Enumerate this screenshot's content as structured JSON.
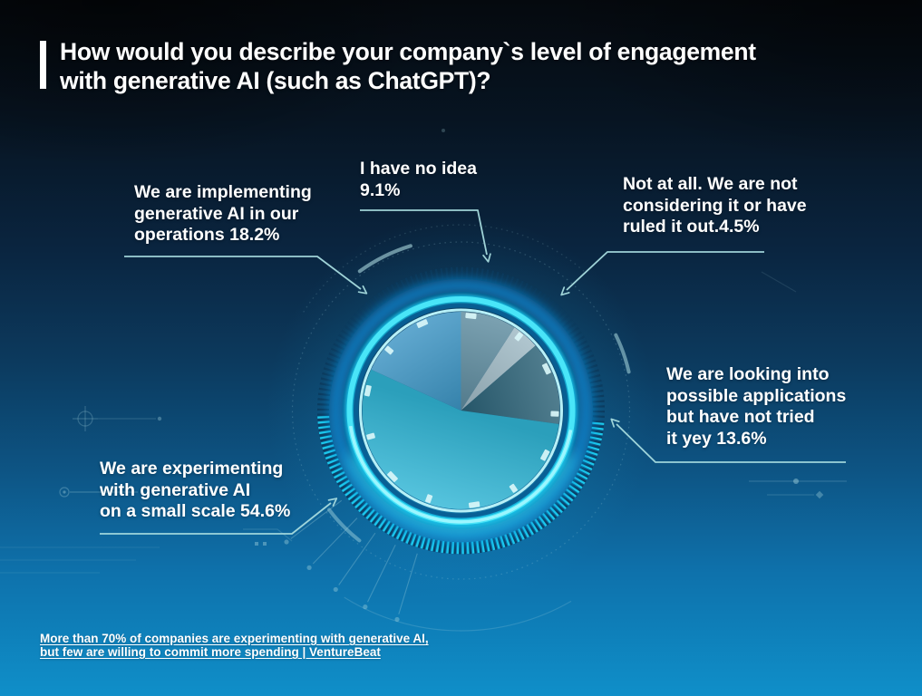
{
  "title": {
    "line1": "How would you describe your company`s level of engagement",
    "line2": "with generative AI (such as ChatGPT)?"
  },
  "chart_data": {
    "type": "pie",
    "title": "How would you describe your company`s level of engagement with generative AI (such as ChatGPT)?",
    "unit": "%",
    "start_angle_deg": 0,
    "direction": "clockwise",
    "slices": [
      {
        "label": "I have no idea",
        "value": 9.1,
        "color": "#5E8CA0"
      },
      {
        "label": "Not at all. We are not considering it or have ruled it out.",
        "value": 4.5,
        "color": "#9FB9C4"
      },
      {
        "label": "We are looking into possible applications but have not tried it yey",
        "value": 13.6,
        "color": "#2B6277"
      },
      {
        "label": "We are experimenting with generative AI on a small scale",
        "value": 54.6,
        "color": "#31B7D7"
      },
      {
        "label": "We are implementing generative AI in our operations",
        "value": 18.2,
        "color": "#3D95C5"
      }
    ]
  },
  "callouts": {
    "implementing": {
      "lines": [
        "We are implementing",
        "generative AI in our",
        "operations 18.2%"
      ]
    },
    "no_idea": {
      "lines": [
        "I have no idea",
        "9.1%"
      ]
    },
    "not_at_all": {
      "lines": [
        "Not at all. We are not",
        "considering it or have",
        "ruled it out.4.5%"
      ]
    },
    "looking_into": {
      "lines": [
        "We are looking into",
        "possible applications",
        "but have not tried",
        "it yey 13.6%"
      ]
    },
    "experimenting": {
      "lines": [
        "We are experimenting",
        "with generative AI",
        "on a small scale 54.6%"
      ]
    }
  },
  "footer": {
    "line1": "More than 70% of companies are experimenting with generative AI,",
    "line2": "but few are willing to commit more spending | VentureBeat"
  },
  "colors": {
    "accent_ring": "#2BD9F2",
    "connector": "#A7DCDF",
    "background_top": "#05090E",
    "background_bottom": "#0F8FC9",
    "text": "#FFFFFF"
  }
}
